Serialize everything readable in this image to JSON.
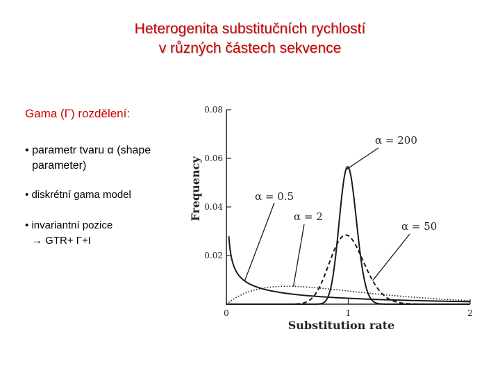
{
  "slide": {
    "title_line1": "Heterogenita substitučních rychlostí",
    "title_line2": "v různých částech sekvence",
    "heading": "Gama (Γ) rozdělení:",
    "bullets": [
      {
        "bullet": "•",
        "text": "parametr tvaru α (shape parameter)"
      },
      {
        "bullet": "•",
        "text": "diskrétní gama model"
      },
      {
        "bullet": "•",
        "text": "invariantní pozice",
        "sub_arrow": "→",
        "sub_text": "GTR+ Γ+I"
      }
    ],
    "colors": {
      "title": "#cc0000",
      "heading": "#cc0000",
      "text": "#000000"
    }
  },
  "chart_data": {
    "type": "line",
    "xlabel": "Substitution rate",
    "ylabel": "Frequency",
    "xlim": [
      0,
      2
    ],
    "ylim": [
      0,
      0.08
    ],
    "x_ticks": [
      "0",
      "1",
      "2"
    ],
    "y_ticks": [
      "0.02",
      "0.04",
      "0.06",
      "0.08"
    ],
    "grid": false,
    "series": [
      {
        "name": "α = 0.5",
        "style": "solid",
        "alpha": 0.5
      },
      {
        "name": "α = 2",
        "style": "dotted",
        "alpha": 2
      },
      {
        "name": "α = 50",
        "style": "dashed",
        "alpha": 50
      },
      {
        "name": "α = 200",
        "style": "solid",
        "alpha": 200
      }
    ],
    "annotations": [
      {
        "text": "α = 200",
        "series": 3
      },
      {
        "text": "α = 0.5",
        "series": 0
      },
      {
        "text": "α = 2",
        "series": 1
      },
      {
        "text": "α = 50",
        "series": 2
      }
    ]
  }
}
